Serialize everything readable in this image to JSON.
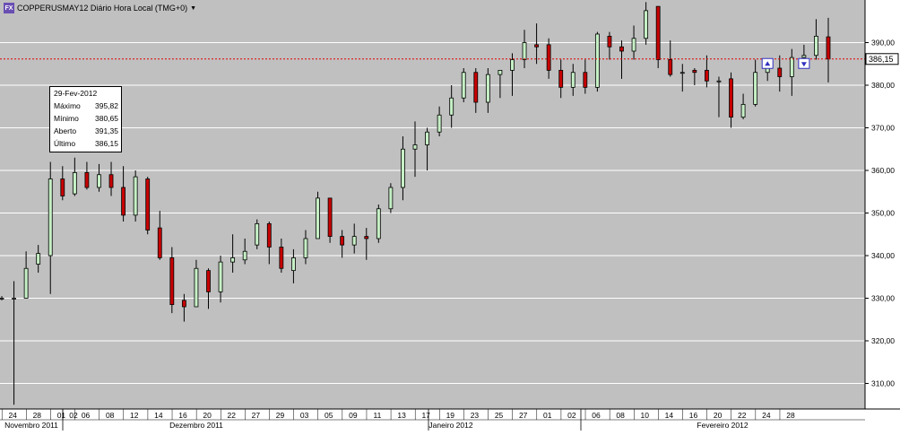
{
  "header": {
    "title": "COPPERUSMAY12 Diário Hora Local (TMG+0)",
    "icon": "symbol-icon"
  },
  "tooltip": {
    "date": "29-Fev-2012",
    "rows": [
      {
        "label": "Máximo",
        "value": "395,82"
      },
      {
        "label": "Mínimo",
        "value": "380,65"
      },
      {
        "label": "Aberto",
        "value": "391,35"
      },
      {
        "label": "Último",
        "value": "386,15"
      }
    ]
  },
  "colors": {
    "plot_bg": "#c0c0c0",
    "up": "#c6f0c6",
    "down": "#c80000",
    "price_line": "#e00000",
    "grid": "#ffffff"
  },
  "chart_data": {
    "type": "candlestick",
    "title": "COPPERUSMAY12 Diário Hora Local (TMG+0)",
    "y_range": [
      304,
      400
    ],
    "y_ticks": [
      "310,00",
      "320,00",
      "330,00",
      "340,00",
      "350,00",
      "360,00",
      "370,00",
      "380,00",
      "390,00"
    ],
    "last_price_label": "386,15",
    "last_price": 386.15,
    "x_day_labels": [
      "24",
      "28",
      "01",
      "02",
      "06",
      "08",
      "12",
      "14",
      "16",
      "20",
      "22",
      "27",
      "29",
      "03",
      "05",
      "09",
      "11",
      "13",
      "17",
      "19",
      "23",
      "25",
      "27",
      "01",
      "02",
      "06",
      "08",
      "10",
      "14",
      "16",
      "20",
      "22",
      "24",
      "28"
    ],
    "x_month_labels": [
      "Novembro 2011",
      "Dezembro 2011",
      "Janeiro 2012",
      "Fevereiro 2012"
    ],
    "candles": [
      {
        "o": 330.0,
        "h": 330.5,
        "l": 329.5,
        "c": 330.0
      },
      {
        "o": 330.0,
        "h": 334.0,
        "l": 305.0,
        "c": 330.0
      },
      {
        "o": 330.0,
        "h": 341.0,
        "l": 330.0,
        "c": 337.0
      },
      {
        "o": 338.0,
        "h": 342.5,
        "l": 336.0,
        "c": 340.5
      },
      {
        "o": 340.0,
        "h": 362.0,
        "l": 331.0,
        "c": 358.0
      },
      {
        "o": 358.0,
        "h": 361.0,
        "l": 353.0,
        "c": 354.0
      },
      {
        "o": 354.5,
        "h": 363.0,
        "l": 354.0,
        "c": 359.5
      },
      {
        "o": 359.5,
        "h": 362.0,
        "l": 355.5,
        "c": 356.0
      },
      {
        "o": 356.0,
        "h": 361.5,
        "l": 355.0,
        "c": 359.0
      },
      {
        "o": 359.0,
        "h": 362.0,
        "l": 354.0,
        "c": 356.0
      },
      {
        "o": 356.0,
        "h": 361.0,
        "l": 348.0,
        "c": 349.5
      },
      {
        "o": 349.5,
        "h": 360.0,
        "l": 348.0,
        "c": 358.5
      },
      {
        "o": 358.0,
        "h": 358.5,
        "l": 345.0,
        "c": 346.0
      },
      {
        "o": 346.5,
        "h": 350.5,
        "l": 339.0,
        "c": 339.5
      },
      {
        "o": 339.5,
        "h": 342.0,
        "l": 326.5,
        "c": 328.5
      },
      {
        "o": 329.5,
        "h": 331.0,
        "l": 324.5,
        "c": 328.0
      },
      {
        "o": 328.0,
        "h": 339.0,
        "l": 328.0,
        "c": 337.0
      },
      {
        "o": 336.5,
        "h": 337.0,
        "l": 327.5,
        "c": 331.5
      },
      {
        "o": 331.5,
        "h": 340.0,
        "l": 329.0,
        "c": 338.5
      },
      {
        "o": 338.5,
        "h": 345.0,
        "l": 336.0,
        "c": 339.5
      },
      {
        "o": 339.0,
        "h": 344.0,
        "l": 338.0,
        "c": 341.0
      },
      {
        "o": 342.5,
        "h": 348.5,
        "l": 341.5,
        "c": 347.5
      },
      {
        "o": 347.5,
        "h": 348.0,
        "l": 338.0,
        "c": 342.0
      },
      {
        "o": 342.0,
        "h": 344.0,
        "l": 336.0,
        "c": 337.0
      },
      {
        "o": 336.5,
        "h": 341.5,
        "l": 333.5,
        "c": 339.5
      },
      {
        "o": 339.5,
        "h": 346.0,
        "l": 338.0,
        "c": 344.0
      },
      {
        "o": 344.0,
        "h": 355.0,
        "l": 344.0,
        "c": 353.5
      },
      {
        "o": 353.5,
        "h": 353.5,
        "l": 343.0,
        "c": 344.5
      },
      {
        "o": 344.5,
        "h": 346.0,
        "l": 339.5,
        "c": 342.5
      },
      {
        "o": 342.5,
        "h": 347.5,
        "l": 340.5,
        "c": 344.5
      },
      {
        "o": 344.5,
        "h": 346.5,
        "l": 339.0,
        "c": 344.0
      },
      {
        "o": 344.0,
        "h": 352.0,
        "l": 343.0,
        "c": 351.0
      },
      {
        "o": 351.0,
        "h": 357.0,
        "l": 350.0,
        "c": 356.0
      },
      {
        "o": 356.0,
        "h": 368.0,
        "l": 353.0,
        "c": 365.0
      },
      {
        "o": 365.0,
        "h": 371.5,
        "l": 358.5,
        "c": 366.0
      },
      {
        "o": 366.0,
        "h": 370.0,
        "l": 360.0,
        "c": 369.0
      },
      {
        "o": 369.0,
        "h": 375.0,
        "l": 368.0,
        "c": 373.0
      },
      {
        "o": 373.0,
        "h": 380.0,
        "l": 370.0,
        "c": 377.0
      },
      {
        "o": 377.0,
        "h": 384.0,
        "l": 376.0,
        "c": 383.0
      },
      {
        "o": 383.0,
        "h": 384.0,
        "l": 373.5,
        "c": 376.0
      },
      {
        "o": 376.0,
        "h": 384.0,
        "l": 373.5,
        "c": 382.5
      },
      {
        "o": 382.5,
        "h": 383.5,
        "l": 377.0,
        "c": 383.5
      },
      {
        "o": 383.5,
        "h": 387.5,
        "l": 377.5,
        "c": 386.0
      },
      {
        "o": 386.0,
        "h": 393.0,
        "l": 384.0,
        "c": 390.0
      },
      {
        "o": 389.5,
        "h": 394.5,
        "l": 385.0,
        "c": 389.0
      },
      {
        "o": 389.5,
        "h": 391.0,
        "l": 381.5,
        "c": 383.5
      },
      {
        "o": 383.5,
        "h": 386.0,
        "l": 377.0,
        "c": 379.5
      },
      {
        "o": 379.5,
        "h": 385.0,
        "l": 377.5,
        "c": 383.0
      },
      {
        "o": 383.0,
        "h": 386.0,
        "l": 378.0,
        "c": 379.5
      },
      {
        "o": 379.5,
        "h": 392.5,
        "l": 378.5,
        "c": 392.0
      },
      {
        "o": 391.5,
        "h": 392.5,
        "l": 386.0,
        "c": 389.0
      },
      {
        "o": 389.0,
        "h": 390.5,
        "l": 381.5,
        "c": 388.0
      },
      {
        "o": 388.0,
        "h": 394.0,
        "l": 386.0,
        "c": 391.0
      },
      {
        "o": 391.0,
        "h": 399.5,
        "l": 389.5,
        "c": 397.5
      },
      {
        "o": 398.5,
        "h": 398.5,
        "l": 384.0,
        "c": 386.0
      },
      {
        "o": 386.0,
        "h": 390.5,
        "l": 382.0,
        "c": 382.5
      },
      {
        "o": 383.0,
        "h": 385.0,
        "l": 378.5,
        "c": 383.0
      },
      {
        "o": 383.5,
        "h": 384.0,
        "l": 380.0,
        "c": 383.0
      },
      {
        "o": 383.5,
        "h": 387.0,
        "l": 379.5,
        "c": 381.0
      },
      {
        "o": 381.0,
        "h": 382.0,
        "l": 372.5,
        "c": 381.0
      },
      {
        "o": 381.5,
        "h": 383.0,
        "l": 370.0,
        "c": 372.5
      },
      {
        "o": 372.5,
        "h": 378.0,
        "l": 372.0,
        "c": 375.5
      },
      {
        "o": 375.5,
        "h": 386.0,
        "l": 375.0,
        "c": 383.0
      },
      {
        "o": 383.0,
        "h": 386.0,
        "l": 381.0,
        "c": 384.0
      },
      {
        "o": 384.0,
        "h": 387.0,
        "l": 378.5,
        "c": 382.0
      },
      {
        "o": 382.0,
        "h": 388.5,
        "l": 377.5,
        "c": 386.5
      },
      {
        "o": 386.5,
        "h": 389.5,
        "l": 384.0,
        "c": 387.0
      },
      {
        "o": 387.0,
        "h": 395.5,
        "l": 386.0,
        "c": 391.5
      },
      {
        "o": 391.35,
        "h": 395.82,
        "l": 380.65,
        "c": 386.15
      }
    ],
    "markers": [
      {
        "index": 63,
        "price": 385.0,
        "dir": "up"
      },
      {
        "index": 66,
        "price": 385.0,
        "dir": "down"
      }
    ],
    "grid": true,
    "legend": "none"
  }
}
